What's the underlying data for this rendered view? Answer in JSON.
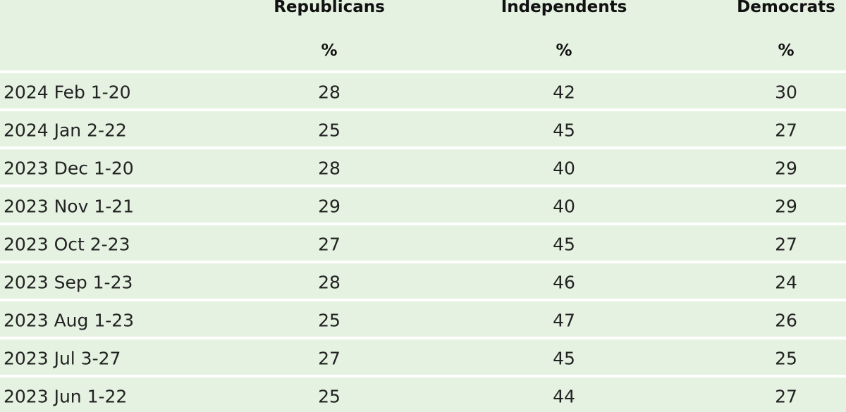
{
  "table": {
    "columns": [
      "Republicans",
      "Independents",
      "Democrats"
    ],
    "units": [
      "%",
      "%",
      "%"
    ],
    "rows": [
      [
        "2024 Feb 1-20",
        28,
        42,
        30
      ],
      [
        "2024 Jan 2-22",
        25,
        45,
        27
      ],
      [
        "2023 Dec 1-20",
        28,
        40,
        29
      ],
      [
        "2023 Nov 1-21",
        29,
        40,
        29
      ],
      [
        "2023 Oct 2-23",
        27,
        45,
        27
      ],
      [
        "2023 Sep 1-23",
        28,
        46,
        24
      ],
      [
        "2023 Aug 1-23",
        25,
        47,
        26
      ],
      [
        "2023 Jul 3-27",
        27,
        45,
        25
      ],
      [
        "2023 Jun 1-22",
        25,
        44,
        27
      ]
    ]
  }
}
